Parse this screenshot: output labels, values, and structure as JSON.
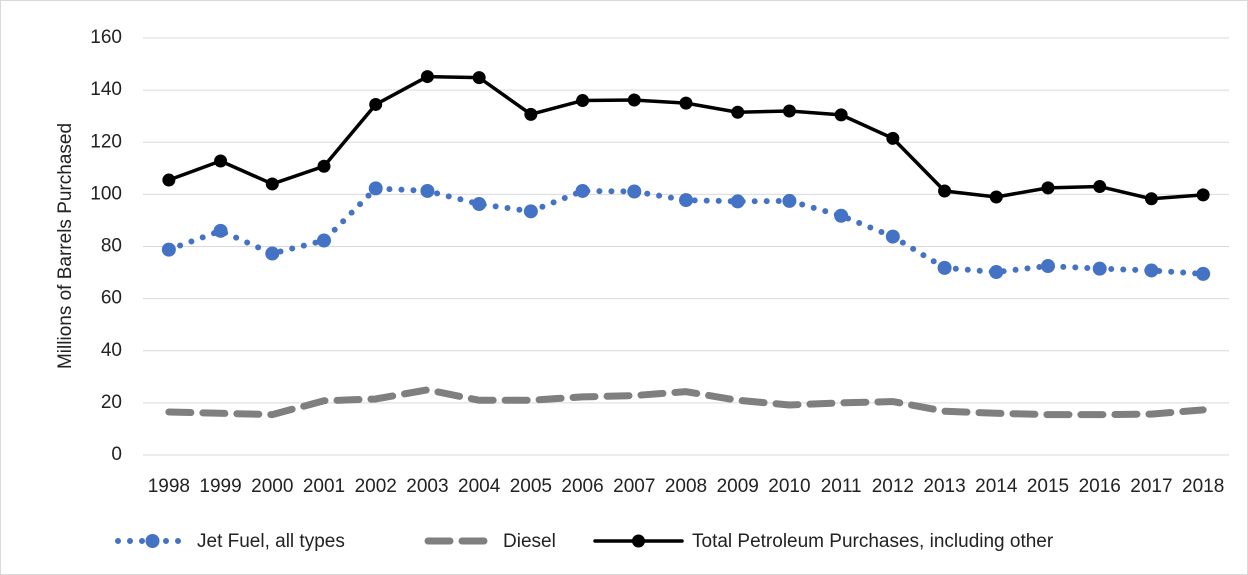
{
  "chart_data": {
    "type": "line",
    "ylabel": "Millions of Barrels Purchased",
    "categories": [
      "1998",
      "1999",
      "2000",
      "2001",
      "2002",
      "2003",
      "2004",
      "2005",
      "2006",
      "2007",
      "2008",
      "2009",
      "2010",
      "2011",
      "2012",
      "2013",
      "2014",
      "2015",
      "2016",
      "2017",
      "2018"
    ],
    "series": [
      {
        "name": "Jet Fuel, all types",
        "color": "#4472c4",
        "style": "dotted",
        "markers": true,
        "values": [
          78.8,
          86,
          77.3,
          82.3,
          102.3,
          101.3,
          96.3,
          93.5,
          101.3,
          101.1,
          97.8,
          97.3,
          97.5,
          91.8,
          83.8,
          71.8,
          70.2,
          72.5,
          71.5,
          70.8,
          69.5
        ]
      },
      {
        "name": "Diesel",
        "color": "#7f7f7f",
        "style": "dashed",
        "markers": false,
        "values": [
          16.5,
          16,
          15.5,
          20.8,
          21.5,
          25,
          21,
          21,
          22.3,
          22.8,
          24.3,
          21,
          19.2,
          20,
          20.5,
          16.8,
          16,
          15.5,
          15.5,
          15.7,
          17.3
        ]
      },
      {
        "name": "Total Petroleum Purchases, including other",
        "color": "#000000",
        "style": "solid",
        "markers": true,
        "values": [
          105.5,
          112.8,
          104,
          110.8,
          134.5,
          145.2,
          144.8,
          130.7,
          136,
          136.2,
          135,
          131.5,
          132,
          130.5,
          121.5,
          101.3,
          99,
          102.5,
          103,
          98.3,
          99.8
        ]
      }
    ],
    "ylim": [
      0,
      160
    ],
    "yticks": [
      0,
      20,
      40,
      60,
      80,
      100,
      120,
      140,
      160
    ],
    "grid": true,
    "legend": "bottom"
  }
}
